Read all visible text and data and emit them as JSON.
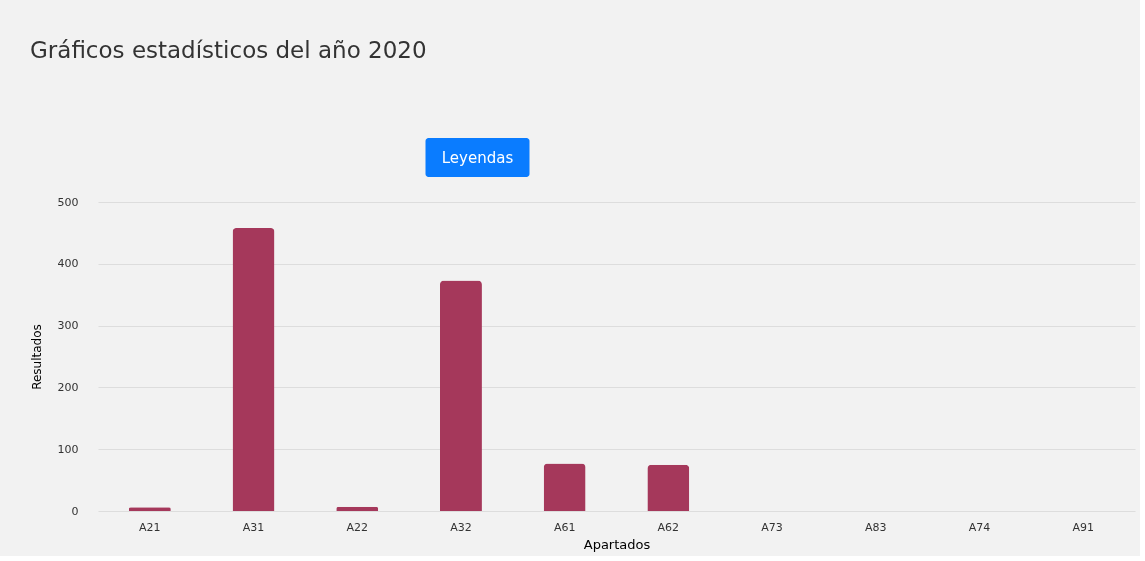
{
  "chart_data": {
    "type": "bar",
    "title": "Gráficos estadísticos del año 2020",
    "xlabel": "Apartados",
    "ylabel": "Resultados",
    "categories": [
      "A21",
      "A31",
      "A22",
      "A32",
      "A61",
      "A62",
      "A73",
      "A83",
      "A74",
      "A91"
    ],
    "values": [
      6,
      458,
      7,
      373,
      77,
      75,
      0,
      0,
      0,
      0
    ],
    "color": "#a5385b",
    "ylim": [
      0,
      500
    ],
    "yticks": [
      0,
      100,
      200,
      300,
      400,
      500
    ],
    "grid": "y",
    "annotations": [
      "Leyendas"
    ]
  }
}
